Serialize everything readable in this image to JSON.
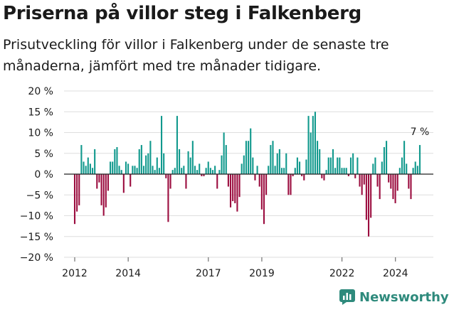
{
  "title": "Priserna på villor steg i Falkenberg",
  "subtitle": "Prisutveckling för villor i Falkenberg under de senaste tre månaderna, jämfört med tre månader tidigare.",
  "brand": {
    "name": "Newsworthy",
    "icon": "newsworthy-logo-icon"
  },
  "colors": {
    "positive": "#11998d",
    "negative": "#9b0d3f",
    "grid": "#dedede",
    "text": "#1a1a1a",
    "brand": "#2e8a7c"
  },
  "chart_data": {
    "type": "bar",
    "ylabel": "",
    "ylim": [
      -20,
      20
    ],
    "yticks": [
      20,
      15,
      10,
      5,
      0,
      -5,
      -10,
      -15,
      -20
    ],
    "ytick_labels": [
      "20 %",
      "15 %",
      "10 %",
      "5 %",
      "0 %",
      "−5 %",
      "−10 %",
      "−15 %",
      "−20 %"
    ],
    "xticks": [
      "2012",
      "2014",
      "2017",
      "2019",
      "2022",
      "2024"
    ],
    "x_start": 2012.0,
    "x_step": 0.0833,
    "values": [
      -12,
      -9,
      -7.5,
      7,
      3,
      2,
      4,
      2.5,
      1.5,
      6,
      -3.5,
      -2,
      -7.5,
      -10,
      -8,
      -4,
      3,
      3,
      6,
      6.5,
      2,
      1,
      -4.5,
      3,
      2.5,
      -3,
      2,
      2,
      1.5,
      6,
      7,
      2,
      4.5,
      5,
      8,
      2,
      1,
      4,
      1.5,
      14,
      5,
      -1,
      -11.5,
      -3.5,
      1,
      1.5,
      14,
      6,
      1.5,
      2,
      -3.5,
      5.5,
      4,
      8,
      2,
      1,
      2.5,
      -0.5,
      -0.5,
      1.5,
      3,
      1.5,
      1,
      2,
      -3.5,
      1,
      4.5,
      10,
      7,
      -3,
      -8,
      -6.5,
      -7,
      -9,
      -5.5,
      2.5,
      4.5,
      8,
      8,
      11,
      4,
      -1.5,
      2,
      -3,
      -8.5,
      -12,
      -5,
      2,
      7,
      8,
      2,
      5,
      6,
      1.5,
      1.5,
      5,
      -5,
      -5,
      -0.5,
      1.5,
      4,
      3,
      -0.5,
      -1.5,
      3.5,
      14,
      10,
      14,
      15,
      8,
      6,
      -1,
      -1.5,
      1,
      4,
      4,
      6,
      1.5,
      4,
      4,
      1.5,
      1.5,
      1.5,
      -0.5,
      4,
      5,
      -1,
      4,
      -3,
      -5,
      -2.5,
      -11,
      -15,
      -10.5,
      2.5,
      4,
      -3,
      -6,
      3,
      6.5,
      8,
      -2,
      -3.5,
      -6,
      -7,
      -4,
      1.5,
      4,
      8,
      2.5,
      -3.5,
      -6,
      1.5,
      3,
      2,
      7
    ],
    "annotations": [
      {
        "label": "7 %",
        "value": 7,
        "series_point": "last"
      }
    ]
  }
}
